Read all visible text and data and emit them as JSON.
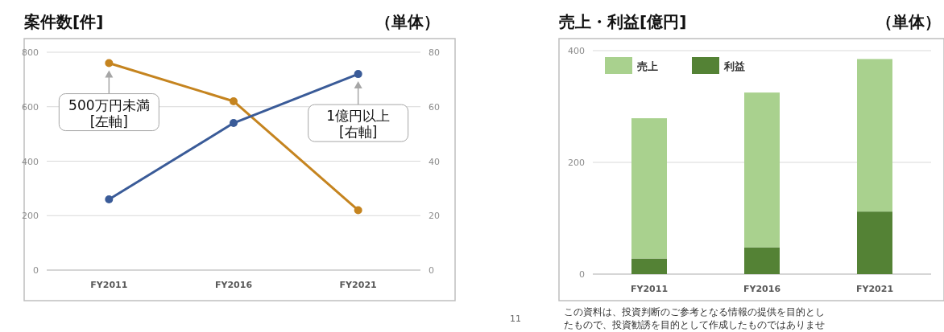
{
  "chart_data": [
    {
      "type": "line",
      "title": "案件数[件]",
      "subtitle": "（単体）",
      "categories": [
        "FY2011",
        "FY2016",
        "FY2021"
      ],
      "series": [
        {
          "name": "500万円未満 [左軸]",
          "color": "#c5841f",
          "values": [
            760,
            620,
            220
          ]
        },
        {
          "name": "1億円以上 [右軸]",
          "color": "#3a5b98",
          "values": [
            26,
            54,
            72
          ],
          "axis": "y2"
        }
      ],
      "ylim": [
        0,
        800
      ],
      "yticks": [
        0,
        200,
        400,
        600,
        800
      ],
      "y2lim": [
        0,
        80
      ],
      "y2ticks": [
        0,
        20,
        40,
        60,
        80
      ],
      "grid": "y",
      "marker": "circle",
      "legend": false
    },
    {
      "type": "bar",
      "stacked": true,
      "title": "売上・利益[億円]",
      "subtitle": "（単体）",
      "categories": [
        "FY2011",
        "FY2016",
        "FY2021"
      ],
      "series": [
        {
          "name": "利益",
          "color": "#548235",
          "values": [
            28,
            48,
            112
          ]
        },
        {
          "name": "売上",
          "color": "#a9d18e",
          "values": [
            251,
            277,
            273
          ]
        }
      ],
      "ylim": [
        0,
        400
      ],
      "yticks": [
        0,
        200,
        400
      ],
      "grid": "y",
      "legend": "top left",
      "annotations": [
        "11",
        "この資料は、投資判断のご参考となる情報の提供を目的としたもので、投資勧誘を目的として作成したものではありませ"
      ]
    }
  ]
}
